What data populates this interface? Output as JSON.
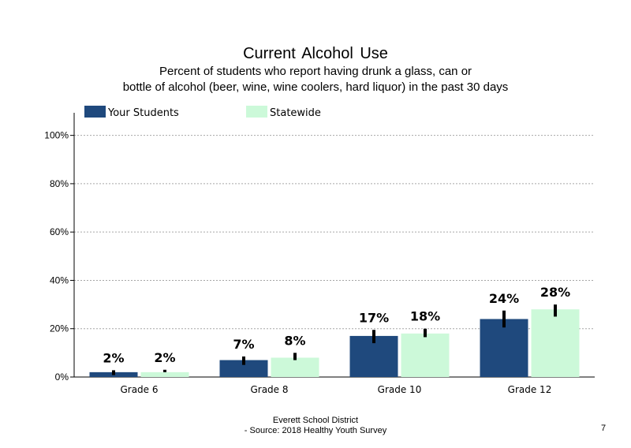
{
  "colors": {
    "your_students": "#1f497d",
    "statewide": "#ccf9d9",
    "error_bar": "#000000",
    "grid": "#a6a6a6"
  },
  "footer": {
    "line1": "Everett School District",
    "line2": "- Source: 2018 Healthy  Youth Survey",
    "page_number": "7"
  },
  "chart_data": {
    "type": "bar",
    "title": "Current  Alcohol Use",
    "subtitle_line1": "Percent of students who report having drunk a glass, can or",
    "subtitle_line2": "bottle  of alcohol (beer, wine, wine coolers, hard liquor)  in the past 30 days",
    "xlabel": "",
    "ylabel": "",
    "ylim": [
      0,
      110
    ],
    "yticks": [
      0,
      20,
      40,
      60,
      80,
      100
    ],
    "ytick_labels": [
      "0%",
      "20%",
      "40%",
      "60%",
      "80%",
      "100%"
    ],
    "grid": true,
    "legend_position": "top-left",
    "categories": [
      "Grade 6",
      "Grade 8",
      "Grade 10",
      "Grade 12"
    ],
    "series": [
      {
        "name": "Your Students",
        "values": [
          2,
          7,
          17,
          24
        ],
        "labels": [
          "2%",
          "7%",
          "17%",
          "24%"
        ],
        "error_low": [
          0.8,
          5,
          14,
          20.5
        ],
        "error_high": [
          2.8,
          8.5,
          19.5,
          27.5
        ]
      },
      {
        "name": "Statewide",
        "values": [
          2,
          8,
          18,
          28
        ],
        "labels": [
          "2%",
          "8%",
          "18%",
          "28%"
        ],
        "error_low": [
          2,
          7,
          16.5,
          25
        ],
        "error_high": [
          3,
          10,
          20,
          30
        ]
      }
    ]
  }
}
